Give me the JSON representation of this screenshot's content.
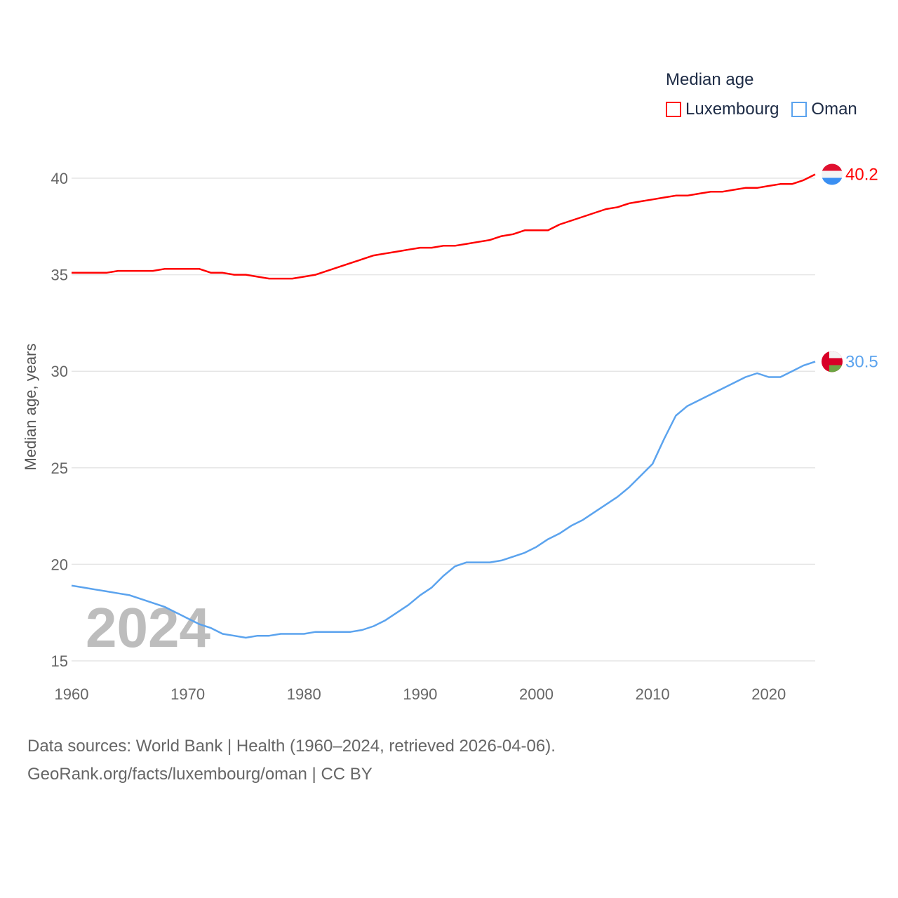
{
  "legend": {
    "title": "Median age",
    "items": [
      {
        "label": "Luxembourg",
        "color": "#ff0000"
      },
      {
        "label": "Oman",
        "color": "#5ba3ee"
      }
    ]
  },
  "year_watermark": "2024",
  "footer": {
    "line1": "Data sources: World Bank | Health (1960–2024, retrieved 2026-04-06).",
    "line2": "GeoRank.org/facts/luxembourg/oman | CC BY"
  },
  "chart_data": {
    "type": "line",
    "title": "Median age",
    "xlabel": "",
    "ylabel": "Median age, years",
    "xlim": [
      1960,
      2024
    ],
    "ylim": [
      15,
      40
    ],
    "x_ticks": [
      "1960",
      "1970",
      "1980",
      "1990",
      "2000",
      "2010",
      "2020"
    ],
    "y_ticks": [
      "15",
      "20",
      "25",
      "30",
      "35",
      "40"
    ],
    "grid": true,
    "legend_position": "top-right",
    "x": [
      1960,
      1961,
      1962,
      1963,
      1964,
      1965,
      1966,
      1967,
      1968,
      1969,
      1970,
      1971,
      1972,
      1973,
      1974,
      1975,
      1976,
      1977,
      1978,
      1979,
      1980,
      1981,
      1982,
      1983,
      1984,
      1985,
      1986,
      1987,
      1988,
      1989,
      1990,
      1991,
      1992,
      1993,
      1994,
      1995,
      1996,
      1997,
      1998,
      1999,
      2000,
      2001,
      2002,
      2003,
      2004,
      2005,
      2006,
      2007,
      2008,
      2009,
      2010,
      2011,
      2012,
      2013,
      2014,
      2015,
      2016,
      2017,
      2018,
      2019,
      2020,
      2021,
      2022,
      2023,
      2024
    ],
    "series": [
      {
        "name": "Luxembourg",
        "color": "#ff0000",
        "end_label": "40.2",
        "values": [
          35.1,
          35.1,
          35.1,
          35.1,
          35.2,
          35.2,
          35.2,
          35.2,
          35.3,
          35.3,
          35.3,
          35.3,
          35.1,
          35.1,
          35.0,
          35.0,
          34.9,
          34.8,
          34.8,
          34.8,
          34.9,
          35.0,
          35.2,
          35.4,
          35.6,
          35.8,
          36.0,
          36.1,
          36.2,
          36.3,
          36.4,
          36.4,
          36.5,
          36.5,
          36.6,
          36.7,
          36.8,
          37.0,
          37.1,
          37.3,
          37.3,
          37.3,
          37.6,
          37.8,
          38.0,
          38.2,
          38.4,
          38.5,
          38.7,
          38.8,
          38.9,
          39.0,
          39.1,
          39.1,
          39.2,
          39.3,
          39.3,
          39.4,
          39.5,
          39.5,
          39.6,
          39.7,
          39.7,
          39.9,
          40.2
        ]
      },
      {
        "name": "Oman",
        "color": "#5ba3ee",
        "end_label": "30.5",
        "values": [
          18.9,
          18.8,
          18.7,
          18.6,
          18.5,
          18.4,
          18.2,
          18.0,
          17.8,
          17.5,
          17.2,
          16.9,
          16.7,
          16.4,
          16.3,
          16.2,
          16.3,
          16.3,
          16.4,
          16.4,
          16.4,
          16.5,
          16.5,
          16.5,
          16.5,
          16.6,
          16.8,
          17.1,
          17.5,
          17.9,
          18.4,
          18.8,
          19.4,
          19.9,
          20.1,
          20.1,
          20.1,
          20.2,
          20.4,
          20.6,
          20.9,
          21.3,
          21.6,
          22.0,
          22.3,
          22.7,
          23.1,
          23.5,
          24.0,
          24.6,
          25.2,
          26.5,
          27.7,
          28.2,
          28.5,
          28.8,
          29.1,
          29.4,
          29.7,
          29.9,
          29.7,
          29.7,
          30.0,
          30.3,
          30.5
        ]
      }
    ]
  }
}
